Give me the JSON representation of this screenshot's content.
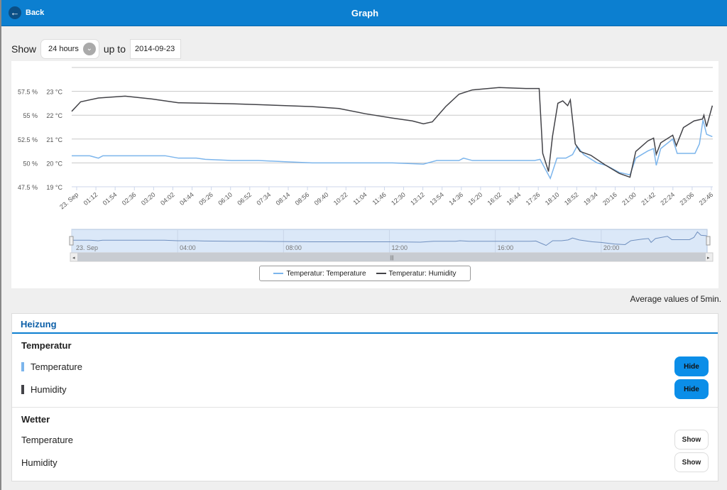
{
  "header": {
    "back_label": "Back",
    "back_icon": "arrow-left-icon",
    "title": "Graph"
  },
  "controls": {
    "show_label": "Show",
    "range_value": "24 hours",
    "up_to_label": "up to",
    "date_value": "2014-09-23"
  },
  "colors": {
    "header": "#0c7fd0",
    "temperature": "#7cb5ec",
    "humidity": "#434348",
    "button_active": "#0b8ee8"
  },
  "chart_data": {
    "type": "line",
    "y_axes": [
      {
        "unit": "°C",
        "ticks": [
          "19 °C",
          "20 °C",
          "21 °C",
          "22 °C",
          "23 °C"
        ],
        "range": [
          19,
          24
        ]
      },
      {
        "unit": "%",
        "ticks": [
          "47.5 %",
          "50 %",
          "52.5 %",
          "55 %",
          "57.5 %"
        ],
        "range": [
          47.5,
          60
        ]
      }
    ],
    "x_ticks": [
      "23. Sep",
      "01:12",
      "01:54",
      "02:36",
      "03:20",
      "04:02",
      "04:44",
      "05:26",
      "06:10",
      "06:52",
      "07:34",
      "08:14",
      "08:56",
      "09:40",
      "10:22",
      "11:04",
      "11:46",
      "12:30",
      "13:12",
      "13:54",
      "14:36",
      "15:20",
      "16:02",
      "16:44",
      "17:26",
      "18:10",
      "18:52",
      "19:34",
      "20:16",
      "21:00",
      "21:42",
      "22:24",
      "23:06",
      "23:46"
    ],
    "grid": true,
    "series": [
      {
        "name": "Temperatur: Temperature",
        "axis": "°C",
        "points": [
          [
            "00:00",
            20.3
          ],
          [
            "00:40",
            20.3
          ],
          [
            "01:00",
            20.2
          ],
          [
            "01:10",
            20.3
          ],
          [
            "03:30",
            20.3
          ],
          [
            "04:00",
            20.2
          ],
          [
            "04:40",
            20.2
          ],
          [
            "05:00",
            20.15
          ],
          [
            "06:00",
            20.1
          ],
          [
            "07:00",
            20.1
          ],
          [
            "08:00",
            20.05
          ],
          [
            "09:00",
            20.0
          ],
          [
            "10:00",
            20.0
          ],
          [
            "12:00",
            20.0
          ],
          [
            "13:10",
            19.95
          ],
          [
            "13:40",
            20.1
          ],
          [
            "14:30",
            20.1
          ],
          [
            "14:40",
            20.2
          ],
          [
            "15:00",
            20.1
          ],
          [
            "17:20",
            20.1
          ],
          [
            "17:32",
            20.15
          ],
          [
            "17:45",
            19.7
          ],
          [
            "17:55",
            19.35
          ],
          [
            "18:10",
            20.2
          ],
          [
            "18:30",
            20.2
          ],
          [
            "18:45",
            20.35
          ],
          [
            "18:55",
            20.7
          ],
          [
            "19:10",
            20.35
          ],
          [
            "19:40",
            20.0
          ],
          [
            "20:00",
            19.9
          ],
          [
            "20:30",
            19.6
          ],
          [
            "20:54",
            19.5
          ],
          [
            "21:07",
            20.2
          ],
          [
            "21:34",
            20.5
          ],
          [
            "21:47",
            20.6
          ],
          [
            "21:53",
            19.9
          ],
          [
            "22:03",
            20.6
          ],
          [
            "22:30",
            21.0
          ],
          [
            "22:40",
            20.4
          ],
          [
            "23:20",
            20.4
          ],
          [
            "23:30",
            20.8
          ],
          [
            "23:38",
            21.8
          ],
          [
            "23:46",
            21.2
          ],
          [
            "23:59",
            21.1
          ]
        ]
      },
      {
        "name": "Temperatur: Humidity",
        "axis": "%",
        "points": [
          [
            "00:00",
            55.4
          ],
          [
            "00:20",
            56.4
          ],
          [
            "01:00",
            56.8
          ],
          [
            "02:00",
            57.0
          ],
          [
            "03:00",
            56.7
          ],
          [
            "04:00",
            56.3
          ],
          [
            "05:00",
            56.25
          ],
          [
            "06:00",
            56.2
          ],
          [
            "07:00",
            56.1
          ],
          [
            "08:00",
            56.0
          ],
          [
            "09:00",
            55.9
          ],
          [
            "10:00",
            55.7
          ],
          [
            "11:00",
            55.15
          ],
          [
            "12:00",
            54.7
          ],
          [
            "12:45",
            54.4
          ],
          [
            "13:10",
            54.1
          ],
          [
            "13:30",
            54.3
          ],
          [
            "14:00",
            55.9
          ],
          [
            "14:30",
            57.2
          ],
          [
            "15:00",
            57.65
          ],
          [
            "16:00",
            57.9
          ],
          [
            "17:00",
            57.8
          ],
          [
            "17:30",
            57.8
          ],
          [
            "17:38",
            51.0
          ],
          [
            "17:51",
            49.1
          ],
          [
            "18:00",
            52.8
          ],
          [
            "18:12",
            56.25
          ],
          [
            "18:23",
            56.5
          ],
          [
            "18:34",
            56.0
          ],
          [
            "18:40",
            56.6
          ],
          [
            "18:51",
            52.0
          ],
          [
            "19:02",
            51.2
          ],
          [
            "19:26",
            50.8
          ],
          [
            "19:58",
            49.8
          ],
          [
            "20:30",
            48.9
          ],
          [
            "20:54",
            48.5
          ],
          [
            "21:07",
            51.2
          ],
          [
            "21:34",
            52.3
          ],
          [
            "21:47",
            52.6
          ],
          [
            "21:53",
            50.9
          ],
          [
            "22:03",
            52.1
          ],
          [
            "22:30",
            52.9
          ],
          [
            "22:38",
            51.8
          ],
          [
            "22:54",
            53.7
          ],
          [
            "23:18",
            54.4
          ],
          [
            "23:37",
            54.6
          ],
          [
            "23:40",
            55.0
          ],
          [
            "23:46",
            53.8
          ],
          [
            "23:59",
            56.0
          ]
        ]
      }
    ],
    "navigator_ticks": [
      "23. Sep",
      "04:00",
      "08:00",
      "12:00",
      "16:00",
      "20:00"
    ],
    "legend": {
      "placement": "bottom",
      "items": [
        "Temperatur: Temperature",
        "Temperatur: Humidity"
      ]
    }
  },
  "note": "Average values of 5min.",
  "panel": {
    "title": "Heizung",
    "groups": [
      {
        "name": "Temperatur",
        "items": [
          {
            "label": "Temperature",
            "button": "Hide",
            "color": "#7cb5ec"
          },
          {
            "label": "Humidity",
            "button": "Hide",
            "color": "#434348"
          }
        ]
      },
      {
        "name": "Wetter",
        "items": [
          {
            "label": "Temperature",
            "button": "Show"
          },
          {
            "label": "Humidity",
            "button": "Show"
          }
        ]
      }
    ]
  }
}
